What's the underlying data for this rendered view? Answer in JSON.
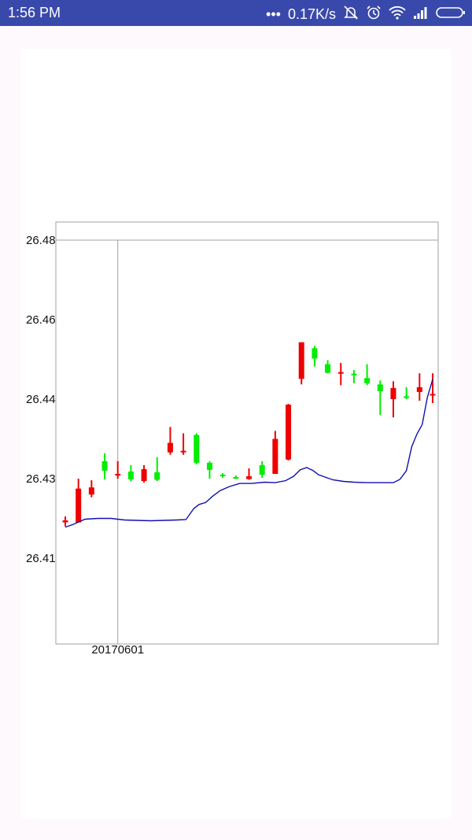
{
  "status_bar": {
    "time": "1:56 PM",
    "dots": "•••",
    "network_speed": "0.17K/s",
    "icons": [
      "alarm-off-icon",
      "alarm-icon",
      "wifi-icon",
      "signal-icon",
      "battery-icon"
    ]
  },
  "colors": {
    "status_bar": "#3949ab",
    "up_candle": "#ee0000",
    "down_candle": "#00ee00",
    "ma_line": "#1010b0",
    "frame": "#a0a0a0",
    "crosshair": "#a0a0a0"
  },
  "chart_data": {
    "type": "candlestick",
    "title": "",
    "xlabel": "",
    "ylabel": "",
    "ylim": [
      26.4,
      26.485
    ],
    "y_ticks": [
      {
        "value": 26.41,
        "label": "26.41"
      },
      {
        "value": 26.43,
        "label": "26.43"
      },
      {
        "value": 26.44,
        "label": "26.44"
      },
      {
        "value": 26.46,
        "label": "26.46"
      },
      {
        "value": 26.48,
        "label": "26.48"
      }
    ],
    "x_tick": {
      "index": 4,
      "label": "20170601"
    },
    "crosshair": {
      "index": 4,
      "value": 26.48
    },
    "series": [
      {
        "name": "",
        "kind": "candles",
        "candles": [
          {
            "o": 26.419,
            "c": 26.4195,
            "h": 26.4205,
            "l": 26.418
          },
          {
            "o": 26.419,
            "c": 26.4275,
            "h": 26.43,
            "l": 26.419
          },
          {
            "o": 26.426,
            "c": 26.4278,
            "h": 26.4296,
            "l": 26.4253
          },
          {
            "o": 26.4322,
            "c": 26.431,
            "h": 26.4332,
            "l": 26.4298
          },
          {
            "o": 26.4305,
            "c": 26.4306,
            "h": 26.4322,
            "l": 26.43
          },
          {
            "o": 26.4309,
            "c": 26.4298,
            "h": 26.4317,
            "l": 26.4293
          },
          {
            "o": 26.4294,
            "c": 26.4312,
            "h": 26.4317,
            "l": 26.429
          },
          {
            "o": 26.4308,
            "c": 26.4297,
            "h": 26.4327,
            "l": 26.4294
          },
          {
            "o": 26.4333,
            "c": 26.4345,
            "h": 26.4365,
            "l": 26.433
          },
          {
            "o": 26.4334,
            "c": 26.4335,
            "h": 26.4357,
            "l": 26.433
          },
          {
            "o": 26.4355,
            "c": 26.432,
            "h": 26.4357,
            "l": 26.4318
          },
          {
            "o": 26.432,
            "c": 26.4311,
            "h": 26.4322,
            "l": 26.43
          },
          {
            "o": 26.4305,
            "c": 26.4303,
            "h": 26.4307,
            "l": 26.4301
          },
          {
            "o": 26.4302,
            "c": 26.4301,
            "h": 26.4304,
            "l": 26.4299
          },
          {
            "o": 26.4299,
            "c": 26.4303,
            "h": 26.4313,
            "l": 26.4297
          },
          {
            "o": 26.4317,
            "c": 26.4305,
            "h": 26.4322,
            "l": 26.4301
          },
          {
            "o": 26.4306,
            "c": 26.435,
            "h": 26.436,
            "l": 26.4306
          },
          {
            "o": 26.4324,
            "c": 26.4393,
            "h": 26.4394,
            "l": 26.4323
          },
          {
            "o": 26.4451,
            "c": 26.4543,
            "h": 26.4543,
            "l": 26.4437
          },
          {
            "o": 26.4528,
            "c": 26.4502,
            "h": 26.4534,
            "l": 26.4482
          },
          {
            "o": 26.4488,
            "c": 26.4466,
            "h": 26.4498,
            "l": 26.4465
          },
          {
            "o": 26.4468,
            "c": 26.4468,
            "h": 26.4491,
            "l": 26.4435
          },
          {
            "o": 26.4464,
            "c": 26.4463,
            "h": 26.4473,
            "l": 26.444
          },
          {
            "o": 26.4453,
            "c": 26.444,
            "h": 26.4488,
            "l": 26.4435
          },
          {
            "o": 26.4437,
            "c": 26.442,
            "h": 26.4447,
            "l": 26.438
          },
          {
            "o": 26.44,
            "c": 26.4428,
            "h": 26.4445,
            "l": 26.4377
          },
          {
            "o": 26.4407,
            "c": 26.4403,
            "h": 26.443,
            "l": 26.44
          },
          {
            "o": 26.4418,
            "c": 26.443,
            "h": 26.4465,
            "l": 26.4398
          },
          {
            "o": 26.4412,
            "c": 26.4413,
            "h": 26.4465,
            "l": 26.4395
          }
        ]
      },
      {
        "name": "",
        "kind": "line",
        "x": [
          0,
          0.6,
          1.5,
          2.5,
          3.5,
          4.5,
          5.5,
          6.5,
          7.5,
          8.5,
          9.2,
          9.8,
          10.2,
          10.7,
          11.2,
          11.8,
          12.5,
          13.3,
          14.2,
          15.2,
          16,
          16.8,
          17.4,
          17.9,
          18.4,
          18.9,
          19.3,
          19.8,
          20.4,
          21.2,
          22,
          23,
          24,
          25,
          25.5,
          26,
          26.4,
          26.8,
          27.2,
          27.6,
          28
        ],
        "values": [
          26.4178,
          26.4185,
          26.4198,
          26.42,
          26.42,
          26.4196,
          26.4195,
          26.4194,
          26.4195,
          26.4196,
          26.4197,
          26.4225,
          26.4235,
          26.424,
          26.4255,
          26.427,
          26.428,
          26.4288,
          26.4288,
          26.4291,
          26.429,
          26.4295,
          26.4303,
          26.4311,
          26.4314,
          26.431,
          26.4305,
          26.4302,
          26.4297,
          26.4293,
          26.4291,
          26.429,
          26.429,
          26.429,
          26.4298,
          26.431,
          26.434,
          26.4356,
          26.4368,
          26.4405,
          26.445
        ]
      }
    ]
  }
}
